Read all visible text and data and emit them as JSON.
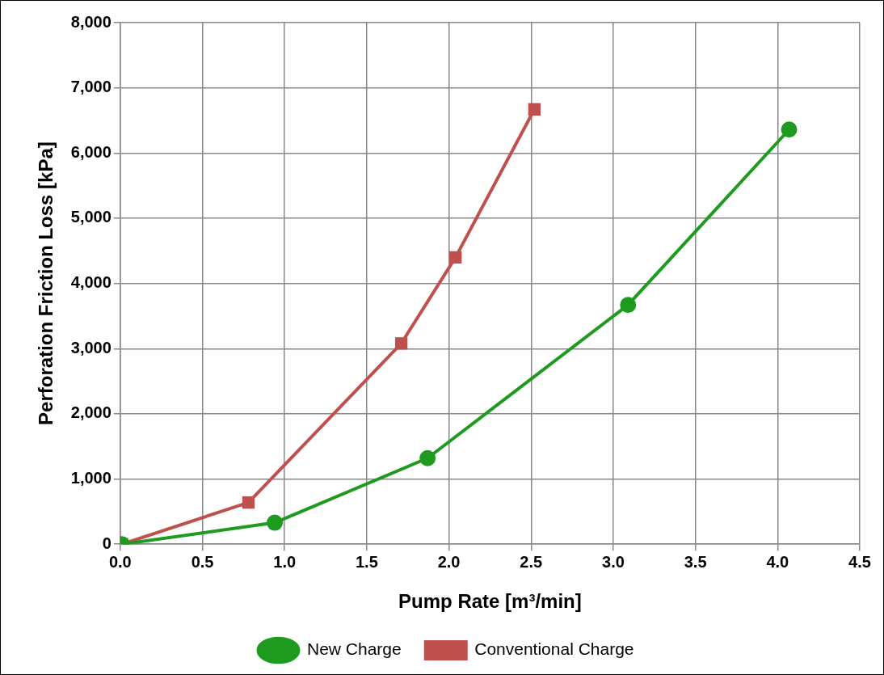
{
  "chart_data": {
    "type": "line",
    "xlabel": "Pump Rate [m³/min]",
    "ylabel": "Perforation Friction Loss [kPa]",
    "xlim": [
      0,
      4.5
    ],
    "xticks": [
      {
        "value": 0,
        "label": "0.0"
      },
      0.5,
      {
        "value": 1,
        "label": "1.0"
      },
      1.5,
      {
        "value": 2,
        "label": "2.0"
      },
      2.5,
      {
        "value": 3,
        "label": "3.0"
      },
      3.5,
      {
        "value": 4,
        "label": "4.0"
      },
      4.5
    ],
    "ylim": [
      0,
      8000
    ],
    "yticks": [
      {
        "value": 0,
        "label": "0"
      },
      {
        "value": 1000,
        "label": "1,000"
      },
      {
        "value": 2000,
        "label": "2,000"
      },
      {
        "value": 3000,
        "label": "3,000"
      },
      {
        "value": 4000,
        "label": "4,000"
      },
      {
        "value": 5000,
        "label": "5,000"
      },
      {
        "value": 6000,
        "label": "6,000"
      },
      {
        "value": 7000,
        "label": "7,000"
      },
      {
        "value": 8000,
        "label": "8,000"
      }
    ],
    "grid": true,
    "legend": "bottom",
    "line_style": "solid",
    "series": [
      {
        "name": "New Charge",
        "color": "#1e9a1e",
        "marker": "circle",
        "x": [
          0.01,
          0.94,
          1.87,
          3.09,
          4.07
        ],
        "values": [
          0,
          330,
          1320,
          3670,
          6360
        ]
      },
      {
        "name": "Conventional Charge",
        "color": "#c0504d",
        "marker": "square",
        "x": [
          0.01,
          0.78,
          1.71,
          2.04,
          2.52
        ],
        "values": [
          0,
          640,
          3080,
          4400,
          6670
        ]
      }
    ]
  }
}
